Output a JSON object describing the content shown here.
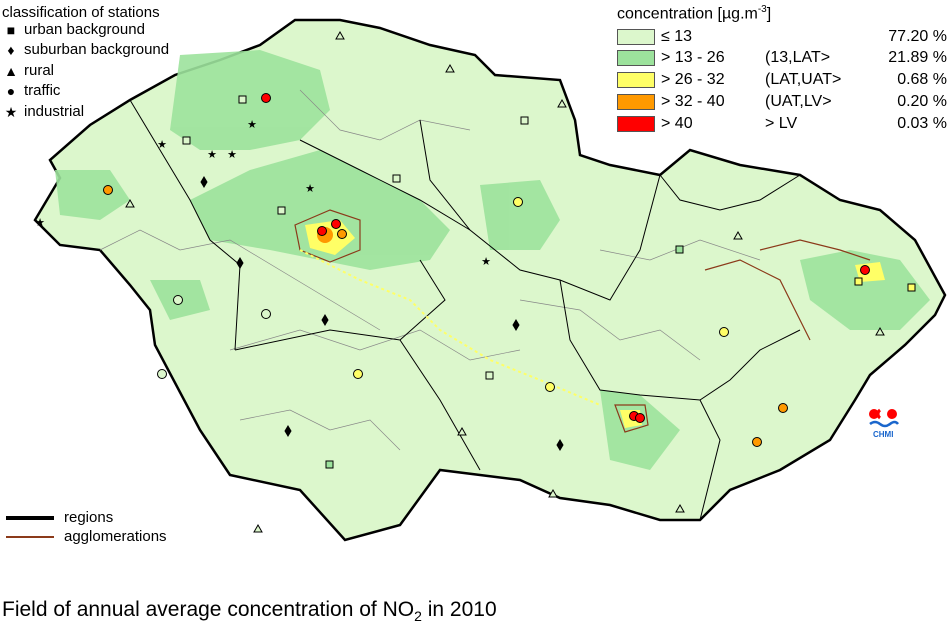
{
  "map": {
    "colors": {
      "background": "#d9f5c9",
      "bin1": "#dcf7cc",
      "bin2": "#9ce29c",
      "bin3": "#ffff66",
      "bin4": "#ff9900",
      "bin5": "#ff0000",
      "region_border": "#000000",
      "district_border": "#888888",
      "agglomeration": "#8b3a1a"
    }
  },
  "station_legend": {
    "title": "classification of stations",
    "items": [
      {
        "symbol": "square",
        "label": "urban background"
      },
      {
        "symbol": "diamond",
        "label": "suburban background"
      },
      {
        "symbol": "triangle",
        "label": "rural"
      },
      {
        "symbol": "circle",
        "label": "traffic"
      },
      {
        "symbol": "star",
        "label": "industrial"
      }
    ]
  },
  "concentration_legend": {
    "title": "concentration [µg.m",
    "title_sup": "-3",
    "title_close": "]",
    "bins": [
      {
        "label": "≤ 13",
        "range": "",
        "percent": "77.20 %",
        "color": "#dcf7cc"
      },
      {
        "label": "> 13 - 26",
        "range": "(13,LAT>",
        "percent": "21.89 %",
        "color": "#9ce29c"
      },
      {
        "label": "> 26 - 32",
        "range": "(LAT,UAT>",
        "percent": "0.68 %",
        "color": "#ffff66"
      },
      {
        "label": "> 32 - 40",
        "range": "(UAT,LV>",
        "percent": "0.20 %",
        "color": "#ff9900"
      },
      {
        "label": "> 40",
        "range": "> LV",
        "percent": "0.03 %",
        "color": "#ff0000"
      }
    ]
  },
  "boundary_legend": {
    "regions": "regions",
    "agglomerations": "agglomerations"
  },
  "logo": {
    "text": "CHMI"
  },
  "caption": {
    "main": "Field of annual average concentration of NO",
    "sub": "2",
    "tail": " in 2010"
  }
}
